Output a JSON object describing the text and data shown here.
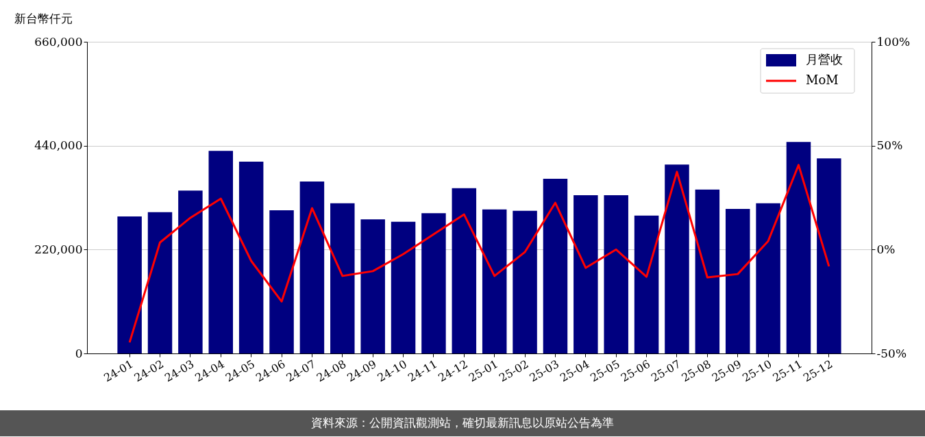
{
  "chart_data": {
    "type": "bar",
    "categories": [
      "24-01",
      "24-02",
      "24-03",
      "24-04",
      "24-05",
      "24-06",
      "24-07",
      "24-08",
      "24-09",
      "24-10",
      "24-11",
      "24-12",
      "25-01",
      "25-02",
      "25-03",
      "25-04",
      "25-05",
      "25-06",
      "25-07",
      "25-08",
      "25-09",
      "25-10",
      "25-11",
      "25-12"
    ],
    "series": [
      {
        "name": "月營收",
        "color": "#000080",
        "values": [
          290000,
          299000,
          345000,
          429000,
          406000,
          303000,
          364000,
          318000,
          284000,
          279000,
          297000,
          350000,
          305000,
          302000,
          370000,
          335000,
          335000,
          292000,
          400000,
          347000,
          306000,
          318000,
          448000,
          413000
        ]
      },
      {
        "name": "MoM",
        "type": "line",
        "axis": "y2",
        "color": "#ff0000",
        "values": [
          -44.7,
          3.4,
          15.3,
          24.5,
          -5.5,
          -25.0,
          19.9,
          -12.7,
          -10.4,
          -2.2,
          7.4,
          16.9,
          -12.7,
          -1.2,
          22.5,
          -8.8,
          0.0,
          -13.1,
          37.4,
          -13.4,
          -11.8,
          4.1,
          40.7,
          -8.1
        ]
      }
    ],
    "ylabel": "新台幣仟元",
    "ylim": [
      0,
      660000
    ],
    "yticks": [
      {
        "value": 0,
        "label": "0"
      },
      {
        "value": 220000,
        "label": "220,000"
      },
      {
        "value": 440000,
        "label": "440,000"
      },
      {
        "value": 660000,
        "label": "660,000"
      }
    ],
    "y2lim": [
      -50,
      100
    ],
    "y2ticks": [
      {
        "value": -50,
        "label": "-50%"
      },
      {
        "value": 0,
        "label": "0%"
      },
      {
        "value": 50,
        "label": "50%"
      },
      {
        "value": 100,
        "label": "100%"
      }
    ],
    "grid": "y",
    "legend": "top right",
    "line_style": "solid",
    "marker": "none",
    "annotations": [
      "資料來源：公開資訊觀測站，確切最新訊息以原站公告為準"
    ]
  }
}
